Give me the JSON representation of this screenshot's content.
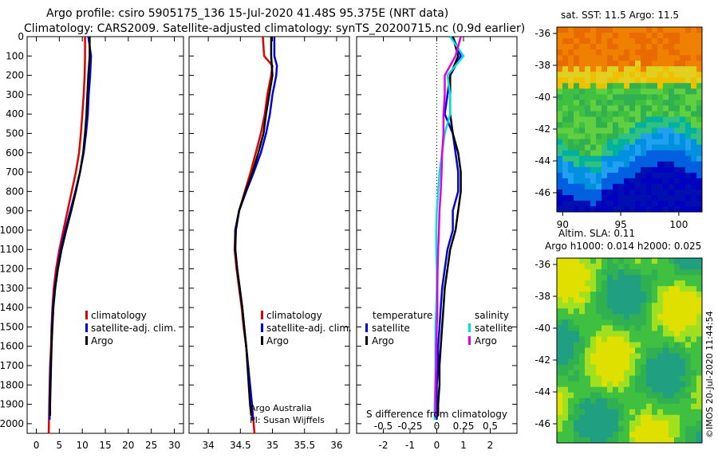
{
  "titles": {
    "line1": "Argo profile: csiro 5905175_136 15-Jul-2020 41.48S 95.375E (NRT data)",
    "line2": "Climatology: CARS2009. Satellite-adjusted climatology: synTS_20200715.nc (0.9d earlier)"
  },
  "chart_data": [
    {
      "type": "line",
      "name": "temperature-profile",
      "xlim": [
        -2,
        32
      ],
      "ylim": [
        2050,
        0
      ],
      "yticks": [
        0,
        100,
        200,
        300,
        400,
        500,
        600,
        700,
        800,
        900,
        1000,
        1100,
        1200,
        1300,
        1400,
        1500,
        1600,
        1700,
        1800,
        1900,
        2000
      ],
      "xticks": [
        0,
        5,
        10,
        15,
        20,
        25,
        30
      ],
      "legend": [
        "climatology",
        "satellite-adj. clim.",
        "Argo"
      ],
      "series": [
        {
          "name": "climatology",
          "color": "#e00000",
          "points": [
            [
              10.6,
              0
            ],
            [
              10.6,
              100
            ],
            [
              10.5,
              200
            ],
            [
              10.3,
              300
            ],
            [
              10.0,
              400
            ],
            [
              9.7,
              500
            ],
            [
              9.3,
              600
            ],
            [
              8.6,
              700
            ],
            [
              7.7,
              800
            ],
            [
              6.8,
              900
            ],
            [
              5.9,
              1000
            ],
            [
              5.0,
              1100
            ],
            [
              4.3,
              1200
            ],
            [
              3.8,
              1300
            ],
            [
              3.5,
              1400
            ],
            [
              3.3,
              1500
            ],
            [
              3.2,
              1600
            ],
            [
              3.0,
              1700
            ],
            [
              2.9,
              1800
            ],
            [
              2.8,
              1900
            ],
            [
              2.7,
              2050
            ]
          ]
        },
        {
          "name": "satellite-adj. clim.",
          "color": "#0000e0",
          "points": [
            [
              11.3,
              0
            ],
            [
              11.9,
              100
            ],
            [
              11.7,
              200
            ],
            [
              11.4,
              300
            ],
            [
              11.2,
              400
            ],
            [
              10.8,
              500
            ],
            [
              10.3,
              600
            ],
            [
              9.5,
              700
            ],
            [
              8.5,
              800
            ],
            [
              7.4,
              900
            ],
            [
              6.3,
              1000
            ],
            [
              5.3,
              1100
            ],
            [
              4.6,
              1200
            ],
            [
              4.0,
              1300
            ],
            [
              3.6,
              1400
            ],
            [
              3.4,
              1500
            ],
            [
              3.3,
              1600
            ],
            [
              3.1,
              1700
            ],
            [
              3.0,
              1800
            ],
            [
              2.9,
              1900
            ],
            [
              2.9,
              1980
            ]
          ]
        },
        {
          "name": "Argo",
          "color": "#000000",
          "points": [
            [
              11.6,
              0
            ],
            [
              11.6,
              100
            ],
            [
              11.3,
              200
            ],
            [
              11.1,
              300
            ],
            [
              10.9,
              400
            ],
            [
              10.6,
              500
            ],
            [
              10.2,
              600
            ],
            [
              9.5,
              700
            ],
            [
              8.6,
              800
            ],
            [
              7.6,
              900
            ],
            [
              6.5,
              1000
            ],
            [
              5.5,
              1100
            ],
            [
              4.7,
              1200
            ],
            [
              4.1,
              1300
            ],
            [
              3.7,
              1400
            ],
            [
              3.5,
              1500
            ],
            [
              3.3,
              1600
            ],
            [
              3.2,
              1700
            ],
            [
              3.1,
              1800
            ],
            [
              3.0,
              1900
            ],
            [
              3.0,
              1960
            ]
          ]
        }
      ]
    },
    {
      "type": "line",
      "name": "salinity-profile",
      "xlim": [
        33.7,
        36.2
      ],
      "ylim": [
        2050,
        0
      ],
      "xticks": [
        34,
        34.5,
        35,
        35.5,
        36
      ],
      "legend": [
        "climatology",
        "satellite-adj. clim.",
        "Argo"
      ],
      "series": [
        {
          "name": "climatology",
          "color": "#e00000",
          "points": [
            [
              34.85,
              0
            ],
            [
              34.87,
              100
            ],
            [
              35.0,
              150
            ],
            [
              34.98,
              200
            ],
            [
              34.92,
              300
            ],
            [
              34.88,
              400
            ],
            [
              34.82,
              500
            ],
            [
              34.74,
              600
            ],
            [
              34.66,
              700
            ],
            [
              34.57,
              800
            ],
            [
              34.48,
              900
            ],
            [
              34.42,
              1000
            ],
            [
              34.41,
              1100
            ],
            [
              34.44,
              1200
            ],
            [
              34.48,
              1300
            ],
            [
              34.52,
              1400
            ],
            [
              34.55,
              1500
            ],
            [
              34.59,
              1600
            ],
            [
              34.62,
              1700
            ],
            [
              34.65,
              1800
            ],
            [
              34.68,
              1900
            ],
            [
              34.72,
              2050
            ]
          ]
        },
        {
          "name": "satellite-adj. clim.",
          "color": "#0000e0",
          "points": [
            [
              35.03,
              0
            ],
            [
              35.03,
              100
            ],
            [
              35.07,
              150
            ],
            [
              35.06,
              200
            ],
            [
              35.0,
              300
            ],
            [
              34.96,
              400
            ],
            [
              34.9,
              500
            ],
            [
              34.82,
              600
            ],
            [
              34.71,
              700
            ],
            [
              34.59,
              800
            ],
            [
              34.48,
              900
            ],
            [
              34.42,
              1000
            ],
            [
              34.42,
              1100
            ],
            [
              34.45,
              1200
            ],
            [
              34.49,
              1300
            ],
            [
              34.53,
              1400
            ],
            [
              34.56,
              1500
            ],
            [
              34.59,
              1600
            ],
            [
              34.62,
              1700
            ],
            [
              34.65,
              1800
            ],
            [
              34.68,
              1900
            ],
            [
              34.69,
              1980
            ]
          ]
        },
        {
          "name": "Argo",
          "color": "#000000",
          "points": [
            [
              34.98,
              0
            ],
            [
              34.98,
              100
            ],
            [
              35.0,
              200
            ],
            [
              34.95,
              300
            ],
            [
              34.9,
              400
            ],
            [
              34.86,
              500
            ],
            [
              34.78,
              600
            ],
            [
              34.69,
              700
            ],
            [
              34.58,
              800
            ],
            [
              34.48,
              900
            ],
            [
              34.43,
              1000
            ],
            [
              34.42,
              1100
            ],
            [
              34.45,
              1200
            ],
            [
              34.49,
              1300
            ],
            [
              34.53,
              1400
            ],
            [
              34.56,
              1500
            ],
            [
              34.59,
              1600
            ],
            [
              34.61,
              1700
            ],
            [
              34.63,
              1800
            ],
            [
              34.65,
              1900
            ],
            [
              34.67,
              1960
            ]
          ]
        }
      ]
    },
    {
      "type": "line",
      "name": "difference-profile",
      "xlim": [
        -3,
        3
      ],
      "ylim": [
        2050,
        0
      ],
      "xticks": [
        -2,
        -1,
        0,
        1,
        2
      ],
      "xlabel": "S difference from climatology",
      "xlabel_ticks": [
        -0.5,
        -0.25,
        0,
        0.25,
        0.5
      ],
      "legend": [
        "satellite",
        "Argo",
        "satellite",
        "Argo"
      ],
      "legend_headers": [
        "temperature",
        "salinity"
      ],
      "series": [
        {
          "name": "temperature satellite",
          "color": "#0000e0",
          "points": [
            [
              0.6,
              0
            ],
            [
              0.9,
              100
            ],
            [
              0.5,
              200
            ],
            [
              0.4,
              300
            ],
            [
              0.3,
              400
            ],
            [
              0.6,
              500
            ],
            [
              0.7,
              600
            ],
            [
              0.8,
              700
            ],
            [
              0.8,
              800
            ],
            [
              0.6,
              900
            ],
            [
              0.6,
              1000
            ],
            [
              0.4,
              1100
            ],
            [
              0.3,
              1200
            ],
            [
              0.2,
              1300
            ],
            [
              0.15,
              1400
            ],
            [
              0.1,
              1500
            ],
            [
              0.05,
              1600
            ],
            [
              0.05,
              1700
            ],
            [
              0.0,
              1800
            ],
            [
              0.0,
              1900
            ],
            [
              0.0,
              1980
            ]
          ]
        },
        {
          "name": "temperature Argo",
          "color": "#000000",
          "points": [
            [
              0.6,
              0
            ],
            [
              0.8,
              100
            ],
            [
              0.5,
              200
            ],
            [
              0.5,
              300
            ],
            [
              0.5,
              400
            ],
            [
              0.6,
              500
            ],
            [
              0.8,
              600
            ],
            [
              0.9,
              700
            ],
            [
              0.9,
              800
            ],
            [
              0.8,
              900
            ],
            [
              0.7,
              1000
            ],
            [
              0.5,
              1100
            ],
            [
              0.4,
              1200
            ],
            [
              0.3,
              1300
            ],
            [
              0.25,
              1400
            ],
            [
              0.2,
              1500
            ],
            [
              0.15,
              1600
            ],
            [
              0.1,
              1700
            ],
            [
              0.1,
              1800
            ],
            [
              0.05,
              1900
            ],
            [
              0.05,
              1960
            ]
          ]
        },
        {
          "name": "salinity satellite",
          "color": "#00e0e0",
          "points": [
            [
              0.5,
              0
            ],
            [
              1.0,
              100
            ],
            [
              0.4,
              200
            ],
            [
              0.5,
              300
            ],
            [
              0.5,
              400
            ],
            [
              0.3,
              500
            ],
            [
              0.2,
              600
            ],
            [
              0.1,
              700
            ],
            [
              0.05,
              800
            ],
            [
              0.0,
              900
            ],
            [
              -0.02,
              1000
            ],
            [
              -0.02,
              1100
            ],
            [
              0.0,
              1200
            ],
            [
              0.0,
              1300
            ],
            [
              -0.02,
              1400
            ],
            [
              -0.05,
              1500
            ],
            [
              -0.05,
              1600
            ],
            [
              -0.05,
              1700
            ],
            [
              -0.05,
              1800
            ],
            [
              -0.08,
              1900
            ],
            [
              -0.08,
              1980
            ]
          ]
        },
        {
          "name": "salinity Argo",
          "color": "#e000e0",
          "points": [
            [
              0.9,
              0
            ],
            [
              0.7,
              100
            ],
            [
              0.3,
              200
            ],
            [
              0.3,
              300
            ],
            [
              0.25,
              400
            ],
            [
              0.25,
              500
            ],
            [
              0.2,
              600
            ],
            [
              0.18,
              700
            ],
            [
              0.15,
              800
            ],
            [
              0.1,
              900
            ],
            [
              0.08,
              1000
            ],
            [
              0.05,
              1100
            ],
            [
              0.03,
              1200
            ],
            [
              0.02,
              1300
            ],
            [
              0.02,
              1400
            ],
            [
              0.0,
              1500
            ],
            [
              -0.02,
              1600
            ],
            [
              -0.02,
              1700
            ],
            [
              -0.05,
              1800
            ],
            [
              -0.05,
              1900
            ],
            [
              -0.05,
              1960
            ]
          ]
        }
      ]
    },
    {
      "type": "heatmap",
      "name": "sst-map",
      "title": "sat. SST: 11.5 Argo: 11.5",
      "lon_range": [
        89.5,
        102
      ],
      "lat_range": [
        -47.2,
        -35.6
      ],
      "xticks": [
        90,
        95,
        100
      ],
      "yticks": [
        -36,
        -38,
        -40,
        -42,
        -44,
        -46
      ],
      "description_colors": [
        "#f08000",
        "#f0c000",
        "#40c040",
        "#00a0e0",
        "#0000c0"
      ]
    },
    {
      "type": "heatmap",
      "name": "sla-map",
      "title_line1": "Altim. SLA: 0.11",
      "title_line2": "Argo h1000: 0.014 h2000: 0.025",
      "lat_range": [
        -47.2,
        -35.6
      ],
      "yticks": [
        -36,
        -38,
        -40,
        -42,
        -44,
        -46
      ]
    }
  ],
  "annotations": {
    "credit1": "Argo Australia",
    "credit2": "PI: Susan Wijffels",
    "watermark": "©IMOS 20-Jul-2020 11:44:54"
  }
}
